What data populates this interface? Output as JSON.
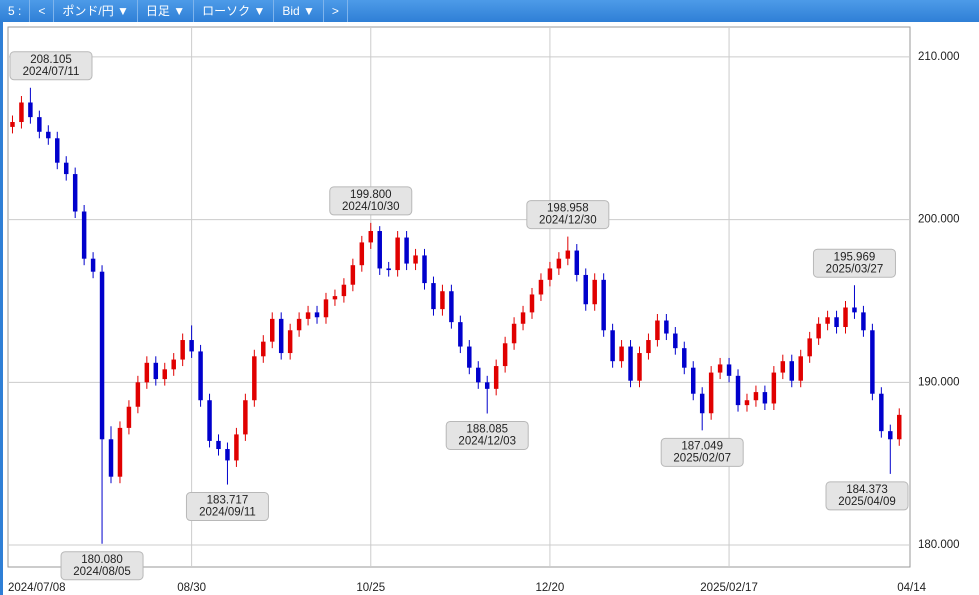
{
  "toolbar": {
    "items": [
      "5 :",
      "<",
      "ポンド/円 ▼",
      "日足 ▼",
      "ローソク ▼",
      "Bid ▼",
      ">"
    ]
  },
  "chart_data": {
    "type": "candlestick",
    "up_color": "#e00000",
    "down_color": "#0000cc",
    "grid": true,
    "xlim": [
      -0.5,
      100.2
    ],
    "ylim": [
      178.65,
      211.84
    ],
    "xticks": [
      {
        "value": 0,
        "label": "2024/07/08"
      },
      {
        "value": 20,
        "label": "08/30"
      },
      {
        "value": 40,
        "label": "10/25"
      },
      {
        "value": 60,
        "label": "12/20"
      },
      {
        "value": 80,
        "label": "2025/02/17"
      },
      {
        "value": 100,
        "label": "04/14"
      }
    ],
    "yticks": [
      {
        "value": 180,
        "label": "180.000"
      },
      {
        "value": 190,
        "label": "190.000"
      },
      {
        "value": 200,
        "label": "200.000"
      },
      {
        "value": 210,
        "label": "210.000"
      }
    ],
    "open": [
      205.7,
      206.0,
      207.2,
      206.3,
      205.4,
      205.0,
      203.5,
      202.8,
      200.5,
      197.6,
      196.8,
      186.5,
      184.2,
      187.2,
      188.5,
      190.0,
      191.2,
      190.2,
      190.8,
      191.4,
      192.6,
      191.9,
      188.9,
      186.4,
      185.9,
      185.2,
      186.8,
      188.9,
      191.6,
      192.5,
      193.9,
      191.8,
      193.2,
      193.9,
      194.3,
      194.0,
      195.1,
      195.3,
      196.0,
      197.2,
      198.6,
      199.3,
      197.0,
      196.9,
      198.9,
      197.3,
      197.8,
      196.1,
      194.5,
      195.6,
      193.7,
      192.2,
      190.9,
      190.0,
      189.6,
      191.0,
      192.4,
      193.6,
      194.3,
      195.4,
      196.3,
      197.0,
      197.6,
      198.1,
      196.6,
      194.8,
      196.3,
      193.2,
      191.3,
      192.2,
      190.1,
      191.8,
      192.6,
      193.8,
      193.0,
      192.1,
      190.9,
      189.3,
      188.1,
      190.6,
      191.1,
      190.4,
      188.6,
      188.9,
      189.4,
      188.7,
      190.6,
      191.3,
      190.1,
      191.6,
      192.7,
      193.6,
      194.0,
      193.4,
      194.6,
      194.3,
      193.2,
      189.3,
      187.0,
      186.5
    ],
    "high": [
      206.4,
      207.6,
      208.105,
      206.7,
      205.8,
      205.4,
      203.9,
      203.2,
      200.9,
      198.0,
      197.2,
      187.3,
      187.6,
      188.9,
      190.4,
      191.6,
      191.6,
      191.2,
      191.8,
      193.0,
      193.5,
      192.3,
      189.3,
      186.8,
      186.3,
      187.2,
      189.3,
      192.0,
      192.9,
      194.3,
      194.3,
      193.6,
      194.3,
      194.7,
      194.7,
      195.5,
      195.7,
      196.4,
      197.6,
      199.0,
      199.8,
      199.6,
      197.4,
      199.3,
      199.3,
      198.2,
      198.2,
      196.5,
      196.0,
      196.0,
      194.1,
      192.6,
      191.3,
      190.4,
      191.4,
      192.8,
      194.0,
      194.7,
      195.8,
      196.7,
      197.4,
      198.0,
      198.958,
      198.5,
      197.0,
      196.7,
      196.7,
      193.6,
      192.6,
      192.6,
      192.2,
      193.0,
      194.2,
      194.2,
      193.4,
      192.5,
      191.3,
      189.7,
      191.0,
      191.5,
      191.5,
      190.8,
      189.3,
      189.8,
      189.8,
      191.0,
      191.7,
      191.7,
      192.0,
      193.1,
      194.0,
      194.4,
      194.4,
      195.0,
      195.969,
      194.7,
      193.6,
      189.7,
      187.4,
      188.4
    ],
    "low": [
      205.3,
      205.6,
      205.9,
      205.0,
      204.6,
      203.1,
      202.4,
      200.1,
      197.2,
      196.4,
      180.08,
      183.8,
      183.8,
      186.8,
      188.1,
      189.6,
      189.8,
      189.8,
      190.4,
      191.0,
      191.5,
      188.5,
      186.0,
      185.5,
      183.717,
      184.8,
      186.4,
      188.5,
      191.2,
      192.1,
      191.4,
      191.4,
      192.8,
      193.5,
      193.6,
      193.6,
      194.7,
      194.9,
      195.6,
      196.8,
      198.2,
      196.6,
      196.5,
      196.5,
      196.9,
      196.9,
      195.7,
      194.1,
      194.1,
      193.3,
      191.8,
      190.5,
      189.6,
      188.085,
      189.2,
      190.6,
      192.0,
      193.2,
      193.9,
      195.0,
      195.9,
      196.6,
      197.2,
      196.2,
      194.4,
      194.4,
      192.8,
      190.9,
      190.9,
      189.7,
      189.7,
      191.4,
      192.2,
      192.6,
      191.7,
      190.5,
      188.9,
      187.049,
      187.7,
      190.2,
      190.0,
      188.2,
      188.2,
      188.5,
      188.3,
      188.3,
      190.2,
      189.7,
      189.7,
      191.2,
      192.3,
      193.2,
      193.0,
      193.0,
      193.9,
      192.8,
      188.9,
      186.6,
      184.373,
      186.1
    ],
    "close": [
      206.0,
      207.2,
      206.3,
      205.4,
      205.0,
      203.5,
      202.8,
      200.5,
      197.6,
      196.8,
      186.5,
      184.2,
      187.2,
      188.5,
      190.0,
      191.2,
      190.2,
      190.8,
      191.4,
      192.6,
      191.9,
      188.9,
      186.4,
      185.9,
      185.2,
      186.8,
      188.9,
      191.6,
      192.5,
      193.9,
      191.8,
      193.2,
      193.9,
      194.3,
      194.0,
      195.1,
      195.3,
      196.0,
      197.2,
      198.6,
      199.3,
      197.0,
      196.9,
      198.9,
      197.3,
      197.8,
      196.1,
      194.5,
      195.6,
      193.7,
      192.2,
      190.9,
      190.0,
      189.6,
      191.0,
      192.4,
      193.6,
      194.3,
      195.4,
      196.3,
      197.0,
      197.6,
      198.1,
      196.6,
      194.8,
      196.3,
      193.2,
      191.3,
      192.2,
      190.1,
      191.8,
      192.6,
      193.8,
      193.0,
      192.1,
      190.9,
      189.3,
      188.1,
      190.6,
      191.1,
      190.4,
      188.6,
      188.9,
      189.4,
      188.7,
      190.6,
      191.3,
      190.1,
      191.6,
      192.7,
      193.6,
      194.0,
      193.4,
      194.6,
      194.3,
      193.2,
      189.3,
      187.0,
      186.5,
      188.0
    ],
    "annotations": [
      {
        "index": 2,
        "value": 208.105,
        "label": "208.105",
        "date": "2024/07/11",
        "side": "above"
      },
      {
        "index": 10,
        "value": 180.08,
        "label": "180.080",
        "date": "2024/08/05",
        "side": "below"
      },
      {
        "index": 24,
        "value": 183.717,
        "label": "183.717",
        "date": "2024/09/11",
        "side": "below"
      },
      {
        "index": 40,
        "value": 199.8,
        "label": "199.800",
        "date": "2024/10/30",
        "side": "above"
      },
      {
        "index": 53,
        "value": 188.085,
        "label": "188.085",
        "date": "2024/12/03",
        "side": "below"
      },
      {
        "index": 62,
        "value": 198.958,
        "label": "198.958",
        "date": "2024/12/30",
        "side": "above"
      },
      {
        "index": 77,
        "value": 187.049,
        "label": "187.049",
        "date": "2025/02/07",
        "side": "below"
      },
      {
        "index": 94,
        "value": 195.969,
        "label": "195.969",
        "date": "2025/03/27",
        "side": "above"
      },
      {
        "index": 98,
        "value": 184.373,
        "label": "184.373",
        "date": "2025/04/09",
        "side": "below"
      }
    ]
  }
}
